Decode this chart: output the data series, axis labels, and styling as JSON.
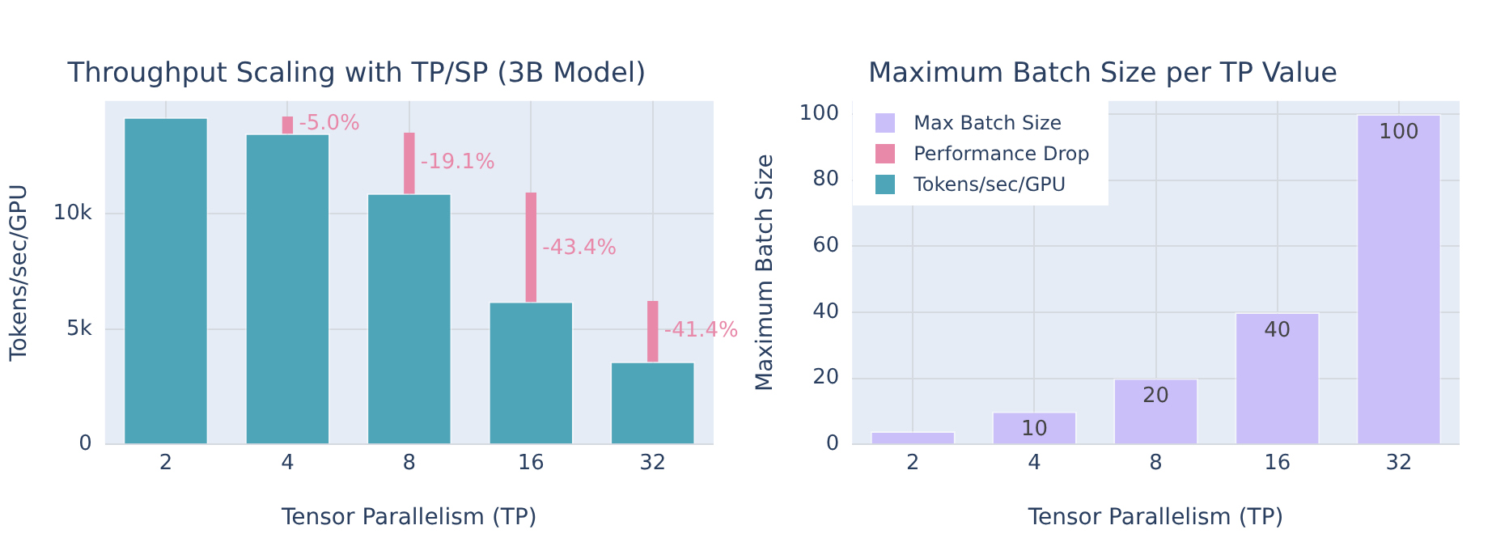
{
  "chart_data": [
    {
      "type": "bar",
      "title": "Throughput Scaling with TP/SP (3B Model)",
      "xlabel": "Tensor Parallelism (TP)",
      "ylabel": "Tokens/sec/GPU",
      "categories": [
        "2",
        "4",
        "8",
        "16",
        "32"
      ],
      "series": [
        {
          "name": "Tokens/sec/GPU",
          "color": "#4ea5b8",
          "values": [
            14200,
            13500,
            10900,
            6200,
            3600
          ]
        },
        {
          "name": "Performance Drop",
          "color": "#e889aa",
          "values": [
            null,
            700,
            2600,
            4700,
            2600
          ],
          "base": [
            null,
            13500,
            10900,
            6200,
            3600
          ]
        }
      ],
      "ylim": [
        0,
        14900
      ],
      "yticks": [
        0,
        {
          "value": 5000,
          "label": "5k"
        },
        {
          "value": 10000,
          "label": "10k"
        }
      ],
      "grid": true,
      "legend": "right",
      "annotations": [
        {
          "text": "-5.0%",
          "x": "4",
          "y": 13900
        },
        {
          "text": "-19.1%",
          "x": "8",
          "y": 12200
        },
        {
          "text": "-43.4%",
          "x": "16",
          "y": 8500
        },
        {
          "text": "-41.4%",
          "x": "32",
          "y": 4900
        }
      ]
    },
    {
      "type": "bar",
      "title": "Maximum Batch Size per TP Value",
      "xlabel": "Tensor Parallelism (TP)",
      "ylabel": "Maximum Batch Size",
      "categories": [
        "2",
        "4",
        "8",
        "16",
        "32"
      ],
      "series": [
        {
          "name": "Max Batch Size",
          "color": "#cbbff9",
          "values": [
            4,
            10,
            20,
            40,
            100
          ],
          "value_labels": [
            null,
            "10",
            "20",
            "40",
            "100"
          ]
        }
      ],
      "ylim": [
        0,
        104
      ],
      "yticks": [
        0,
        20,
        40,
        60,
        80,
        100
      ],
      "grid": true,
      "legend": "top left"
    }
  ]
}
